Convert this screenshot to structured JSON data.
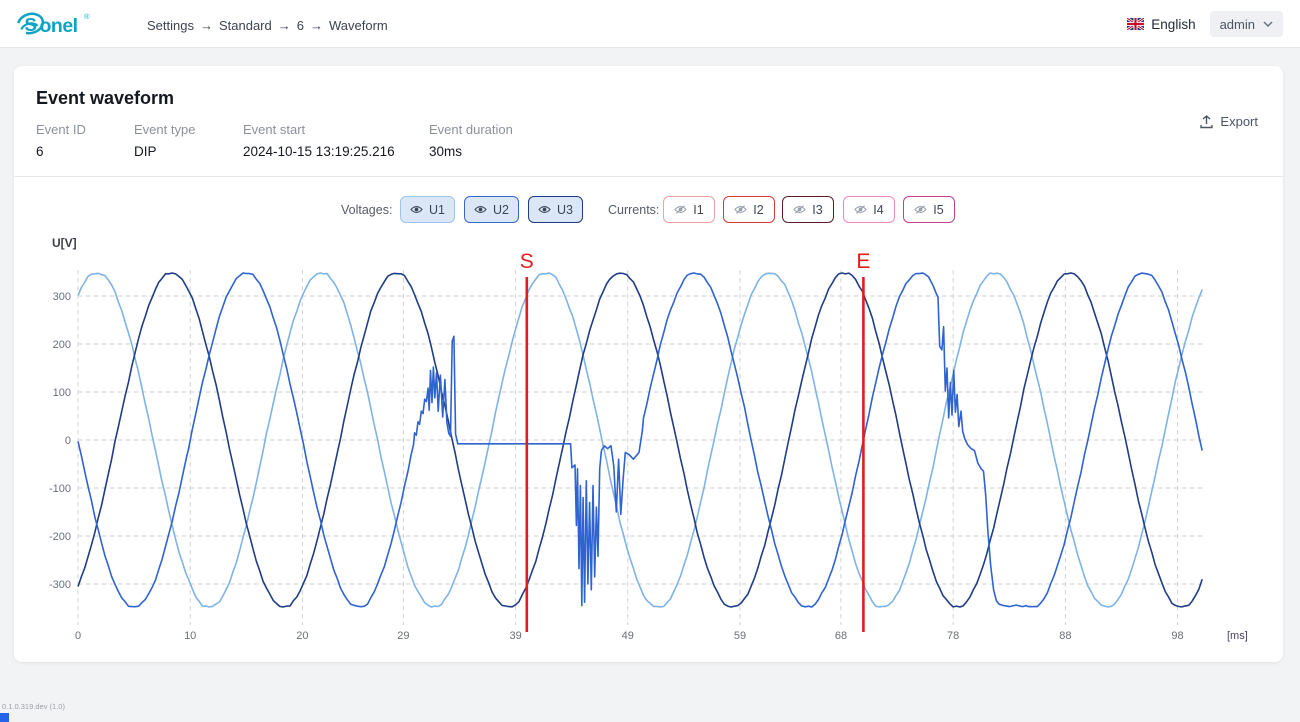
{
  "header": {
    "logo_text": "Sonel",
    "breadcrumb": [
      "Settings",
      "Standard",
      "6",
      "Waveform"
    ],
    "language": "English",
    "user": "admin"
  },
  "card": {
    "title": "Event waveform",
    "fields": [
      {
        "label": "Event ID",
        "value": "6"
      },
      {
        "label": "Event type",
        "value": "DIP"
      },
      {
        "label": "Event start",
        "value": "2024-10-15 13:19:25.216"
      },
      {
        "label": "Event duration",
        "value": "30ms"
      }
    ],
    "export_label": "Export",
    "toggles": {
      "voltages_label": "Voltages:",
      "currents_label": "Currents:",
      "voltage_buttons": [
        {
          "label": "U1",
          "border": "#9ec3ea",
          "state": "visible"
        },
        {
          "label": "U2",
          "border": "#3668c9",
          "state": "visible"
        },
        {
          "label": "U3",
          "border": "#1e3a8a",
          "state": "visible"
        }
      ],
      "current_buttons": [
        {
          "label": "I1",
          "border": "#f0a2a2",
          "state": "hidden"
        },
        {
          "label": "I2",
          "border": "#d43a3a",
          "state": "hidden"
        },
        {
          "label": "I3",
          "border": "#5c2020",
          "state": "hidden"
        },
        {
          "label": "I4",
          "border": "#ef86c4",
          "state": "hidden"
        },
        {
          "label": "I5",
          "border": "#c23f92",
          "state": "hidden"
        }
      ]
    }
  },
  "footer": {
    "version": "0.1.0.319.dev (1.0)"
  },
  "chart_data": {
    "type": "line",
    "ylabel": "U[V]",
    "xlabel": "[ms]",
    "x_ticks": [
      0,
      10,
      20,
      29,
      39,
      49,
      59,
      68,
      78,
      88,
      98
    ],
    "y_ticks": [
      300,
      200,
      100,
      0,
      -100,
      -200,
      -300
    ],
    "x_range_ms": [
      0,
      100.4
    ],
    "y_range_v": [
      -370,
      370
    ],
    "grid": "dashed",
    "waveform": {
      "period_ms": 20,
      "amplitude_v": 350,
      "clip_v": 347,
      "sample_step_ms": 0.3
    },
    "series": [
      {
        "name": "U1",
        "color": "#7fb3e6",
        "peak_at_ms": 1.7
      },
      {
        "name": "U3",
        "color": "#1f3d85",
        "peak_at_ms": 8.35
      },
      {
        "name": "U2",
        "color": "#2f63cf",
        "peak_at_ms": 15.0,
        "overrides": [
          {
            "from": 29.7,
            "to": 33.85,
            "points": [
              [
                29.7,
                -30
              ],
              [
                29.9,
                -10
              ],
              [
                30.0,
                15
              ],
              [
                30.15,
                10
              ],
              [
                30.3,
                38
              ],
              [
                30.45,
                33
              ],
              [
                30.6,
                60
              ],
              [
                30.75,
                55
              ],
              [
                30.9,
                85
              ],
              [
                31.05,
                80
              ],
              [
                31.2,
                108
              ],
              [
                31.3,
                62
              ],
              [
                31.42,
                145
              ],
              [
                31.55,
                78
              ],
              [
                31.68,
                152
              ],
              [
                31.8,
                88
              ],
              [
                31.95,
                140
              ],
              [
                32.1,
                60
              ],
              [
                32.3,
                135
              ],
              [
                32.5,
                48
              ],
              [
                32.7,
                126
              ],
              [
                32.88,
                36
              ],
              [
                33.05,
                14
              ],
              [
                33.2,
                8
              ],
              [
                33.35,
                206
              ],
              [
                33.5,
                216
              ],
              [
                33.65,
                12
              ],
              [
                33.85,
                -8
              ]
            ]
          },
          {
            "from": 33.85,
            "to": 43.9,
            "points": [
              [
                33.85,
                -8
              ],
              [
                43.9,
                -8
              ]
            ]
          },
          {
            "from": 43.9,
            "to": 50.3,
            "points": [
              [
                43.9,
                -8
              ],
              [
                44.02,
                -58
              ],
              [
                44.3,
                -52
              ],
              [
                44.42,
                -178
              ],
              [
                44.52,
                -60
              ],
              [
                44.65,
                -268
              ],
              [
                44.78,
                -95
              ],
              [
                44.9,
                -345
              ],
              [
                45.02,
                -120
              ],
              [
                45.15,
                -338
              ],
              [
                45.3,
                -85
              ],
              [
                45.45,
                -300
              ],
              [
                45.6,
                -130
              ],
              [
                45.75,
                -312
              ],
              [
                45.9,
                -95
              ],
              [
                46.05,
                -285
              ],
              [
                46.2,
                -140
              ],
              [
                46.35,
                -242
              ],
              [
                46.5,
                -60
              ],
              [
                46.65,
                -22
              ],
              [
                46.9,
                -12
              ],
              [
                47.2,
                -18
              ],
              [
                47.5,
                -12
              ],
              [
                47.75,
                -55
              ],
              [
                47.98,
                -150
              ],
              [
                48.18,
                -40
              ],
              [
                48.38,
                -155
              ],
              [
                48.58,
                -82
              ],
              [
                48.78,
                -26
              ],
              [
                49.1,
                -30
              ],
              [
                49.5,
                -40
              ],
              [
                50.0,
                -26
              ],
              [
                50.3,
                20
              ]
            ]
          },
          {
            "from": 75.8,
            "to": 84.5,
            "points": [
              [
                75.8,
                340
              ],
              [
                76.2,
                322
              ],
              [
                76.5,
                305
              ],
              [
                76.65,
                298
              ],
              [
                76.8,
                195
              ],
              [
                77.0,
                188
              ],
              [
                77.15,
                236
              ],
              [
                77.3,
                102
              ],
              [
                77.45,
                150
              ],
              [
                77.6,
                46
              ],
              [
                77.75,
                120
              ],
              [
                77.9,
                52
              ],
              [
                78.05,
                145
              ],
              [
                78.2,
                58
              ],
              [
                78.35,
                95
              ],
              [
                78.5,
                28
              ],
              [
                78.7,
                60
              ],
              [
                78.85,
                18
              ],
              [
                79.05,
                2
              ],
              [
                79.3,
                -10
              ],
              [
                79.6,
                -18
              ],
              [
                79.9,
                -22
              ],
              [
                80.2,
                -48
              ],
              [
                80.5,
                -60
              ],
              [
                80.7,
                -65
              ],
              [
                80.9,
                -115
              ],
              [
                81.1,
                -190
              ],
              [
                81.35,
                -262
              ],
              [
                81.6,
                -312
              ],
              [
                81.85,
                -335
              ],
              [
                82.1,
                -342
              ],
              [
                82.5,
                -345
              ],
              [
                83.0,
                -347
              ],
              [
                83.6,
                -344
              ],
              [
                84.2,
                -347
              ],
              [
                84.5,
                -345
              ]
            ]
          }
        ]
      }
    ],
    "markers": [
      {
        "label": "S",
        "x_ms": 40.0,
        "color": "#e11d1d"
      },
      {
        "label": "E",
        "x_ms": 70.0,
        "color": "#e11d1d"
      }
    ]
  }
}
